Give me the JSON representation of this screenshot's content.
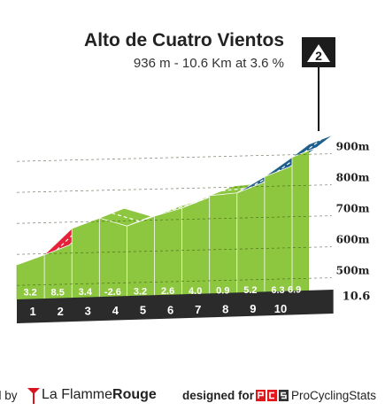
{
  "header": {
    "title": "Alto de Cuatro Vientos",
    "subtitle": "936 m - 10.6 Km at 3.6 %",
    "category_badge": "2",
    "category_icon": "mountain-peak-icon"
  },
  "chart_data": {
    "type": "area",
    "title": "Alto de Cuatro Vientos",
    "xlabel": "",
    "ylabel": "",
    "x_unit": "km",
    "y_unit": "m",
    "total_distance": "10.6",
    "km_markers": [
      "1",
      "2",
      "3",
      "4",
      "5",
      "6",
      "7",
      "8",
      "9",
      "10"
    ],
    "segment_gradients": [
      "3.2",
      "8.5",
      "3.4",
      "-2.6",
      "3.2",
      "2.6",
      "4.0",
      "0.9",
      "5.2",
      "6.3",
      "6.9"
    ],
    "segment_gradient_values": [
      3.2,
      8.5,
      3.4,
      -2.6,
      3.2,
      2.6,
      4.0,
      0.9,
      5.2,
      6.3,
      6.9
    ],
    "segment_end_km": [
      1,
      2,
      3,
      4,
      5,
      6,
      7,
      8,
      9,
      10,
      10.6
    ],
    "elevation_ticks": [
      "500m",
      "600m",
      "700m",
      "800m",
      "900m"
    ],
    "elevation_tick_values": [
      500,
      600,
      700,
      800,
      900
    ],
    "ylim": [
      436,
      936
    ],
    "grid": true,
    "colors": {
      "gradient_low": "#8dc63f",
      "gradient_mid": "#1f5f8b",
      "gradient_high": "#e8213a",
      "base": "#2b2b2b",
      "side": "#a9a39a"
    }
  },
  "footer": {
    "by_label": "d by",
    "brand_plain": "La Flamme",
    "brand_bold": "Rouge",
    "designed_label": "designed for",
    "pcs_label": "ProCyclingStats"
  }
}
